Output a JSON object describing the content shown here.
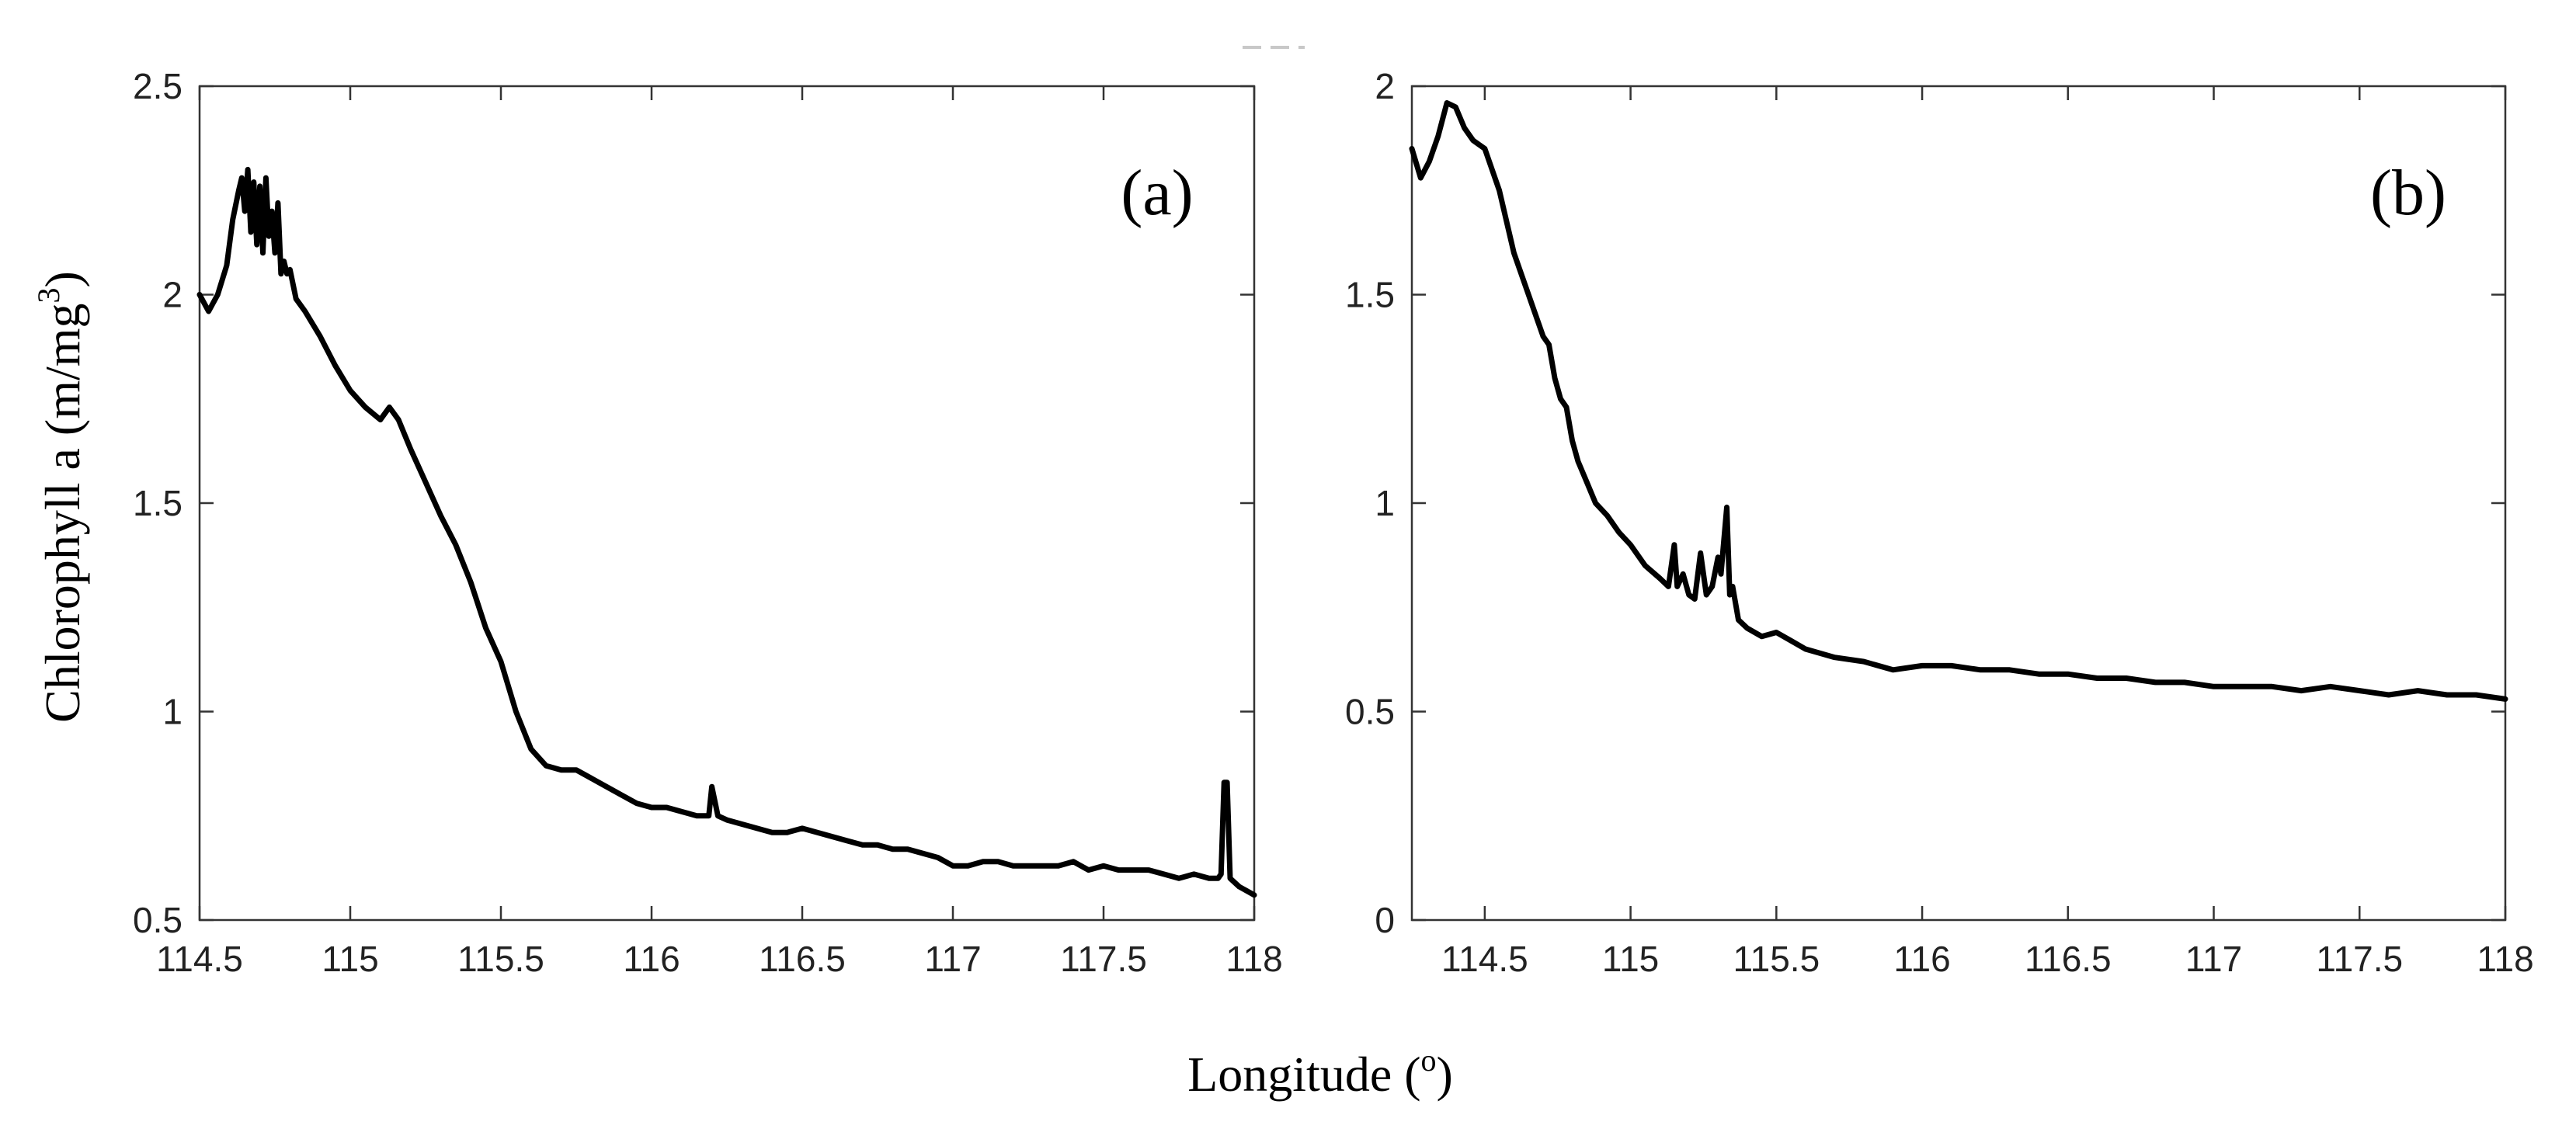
{
  "figure": {
    "shared_xlabel": "Longitude (",
    "shared_xlabel_sup": "o",
    "shared_xlabel_end": ")",
    "shared_ylabel": "Chlorophyll a (m/mg",
    "shared_ylabel_sup": "3",
    "shared_ylabel_end": ")"
  },
  "chart_data": [
    {
      "type": "line",
      "panel_label": "(a)",
      "xlim": [
        114.5,
        118
      ],
      "ylim": [
        0.5,
        2.5
      ],
      "xticks": [
        114.5,
        115,
        115.5,
        116,
        116.5,
        117,
        117.5,
        118
      ],
      "xtick_labels": [
        "114.5",
        "115",
        "115.5",
        "116",
        "116.5",
        "117",
        "117.5",
        "118"
      ],
      "yticks": [
        0.5,
        1,
        1.5,
        2,
        2.5
      ],
      "ytick_labels": [
        "0.5",
        "1",
        "1.5",
        "2",
        "2.5"
      ],
      "grid": false,
      "line_color": "#000000",
      "series": [
        {
          "x": [
            114.5,
            114.53,
            114.56,
            114.59,
            114.61,
            114.63,
            114.64,
            114.65,
            114.66,
            114.67,
            114.68,
            114.69,
            114.7,
            114.71,
            114.72,
            114.73,
            114.74,
            114.75,
            114.76,
            114.77,
            114.78,
            114.79,
            114.8,
            114.82,
            114.85,
            114.9,
            114.95,
            115.0,
            115.05,
            115.1,
            115.13,
            115.16,
            115.2,
            115.25,
            115.3,
            115.35,
            115.4,
            115.45,
            115.5,
            115.55,
            115.6,
            115.65,
            115.7,
            115.75,
            115.8,
            115.85,
            115.9,
            115.95,
            116.0,
            116.05,
            116.1,
            116.15,
            116.19,
            116.2,
            116.22,
            116.25,
            116.3,
            116.35,
            116.4,
            116.45,
            116.5,
            116.55,
            116.6,
            116.65,
            116.7,
            116.75,
            116.8,
            116.85,
            116.9,
            116.95,
            117.0,
            117.05,
            117.1,
            117.15,
            117.2,
            117.25,
            117.3,
            117.35,
            117.4,
            117.45,
            117.5,
            117.55,
            117.6,
            117.65,
            117.7,
            117.75,
            117.8,
            117.85,
            117.88,
            117.89,
            117.9,
            117.91,
            117.92,
            117.95,
            118.0
          ],
          "y": [
            2.0,
            1.96,
            2.0,
            2.07,
            2.18,
            2.25,
            2.28,
            2.2,
            2.3,
            2.15,
            2.27,
            2.12,
            2.26,
            2.1,
            2.28,
            2.14,
            2.2,
            2.1,
            2.22,
            2.05,
            2.08,
            2.05,
            2.06,
            1.99,
            1.96,
            1.9,
            1.83,
            1.77,
            1.73,
            1.7,
            1.73,
            1.7,
            1.63,
            1.55,
            1.47,
            1.4,
            1.31,
            1.2,
            1.12,
            1.0,
            0.91,
            0.87,
            0.86,
            0.86,
            0.84,
            0.82,
            0.8,
            0.78,
            0.77,
            0.77,
            0.76,
            0.75,
            0.75,
            0.82,
            0.75,
            0.74,
            0.73,
            0.72,
            0.71,
            0.71,
            0.72,
            0.71,
            0.7,
            0.69,
            0.68,
            0.68,
            0.67,
            0.67,
            0.66,
            0.65,
            0.63,
            0.63,
            0.64,
            0.64,
            0.63,
            0.63,
            0.63,
            0.63,
            0.64,
            0.62,
            0.63,
            0.62,
            0.62,
            0.62,
            0.61,
            0.6,
            0.61,
            0.6,
            0.6,
            0.61,
            0.83,
            0.83,
            0.6,
            0.58,
            0.56
          ]
        }
      ]
    },
    {
      "type": "line",
      "panel_label": "(b)",
      "xlim": [
        114.25,
        118
      ],
      "ylim": [
        0,
        2
      ],
      "xticks": [
        114.5,
        115,
        115.5,
        116,
        116.5,
        117,
        117.5,
        118
      ],
      "xtick_labels": [
        "114.5",
        "115",
        "115.5",
        "116",
        "116.5",
        "117",
        "117.5",
        "118"
      ],
      "yticks": [
        0,
        0.5,
        1,
        1.5,
        2
      ],
      "ytick_labels": [
        "0",
        "0.5",
        "1",
        "1.5",
        "2"
      ],
      "grid": false,
      "line_color": "#000000",
      "series": [
        {
          "x": [
            114.25,
            114.28,
            114.31,
            114.34,
            114.37,
            114.4,
            114.43,
            114.46,
            114.5,
            114.55,
            114.6,
            114.65,
            114.7,
            114.72,
            114.74,
            114.76,
            114.78,
            114.8,
            114.82,
            114.85,
            114.88,
            114.92,
            114.96,
            115.0,
            115.05,
            115.1,
            115.13,
            115.15,
            115.16,
            115.18,
            115.2,
            115.22,
            115.24,
            115.26,
            115.28,
            115.3,
            115.31,
            115.33,
            115.34,
            115.35,
            115.37,
            115.4,
            115.45,
            115.5,
            115.55,
            115.6,
            115.7,
            115.8,
            115.9,
            116.0,
            116.1,
            116.2,
            116.3,
            116.4,
            116.5,
            116.6,
            116.7,
            116.8,
            116.9,
            117.0,
            117.1,
            117.2,
            117.3,
            117.4,
            117.5,
            117.6,
            117.7,
            117.8,
            117.9,
            118.0
          ],
          "y": [
            1.85,
            1.78,
            1.82,
            1.88,
            1.96,
            1.95,
            1.9,
            1.87,
            1.85,
            1.75,
            1.6,
            1.5,
            1.4,
            1.38,
            1.3,
            1.25,
            1.23,
            1.15,
            1.1,
            1.05,
            1.0,
            0.97,
            0.93,
            0.9,
            0.85,
            0.82,
            0.8,
            0.9,
            0.8,
            0.83,
            0.78,
            0.77,
            0.88,
            0.78,
            0.8,
            0.87,
            0.83,
            0.99,
            0.78,
            0.8,
            0.72,
            0.7,
            0.68,
            0.69,
            0.67,
            0.65,
            0.63,
            0.62,
            0.6,
            0.61,
            0.61,
            0.6,
            0.6,
            0.59,
            0.59,
            0.58,
            0.58,
            0.57,
            0.57,
            0.56,
            0.56,
            0.56,
            0.55,
            0.56,
            0.55,
            0.54,
            0.55,
            0.54,
            0.54,
            0.53
          ]
        }
      ]
    }
  ]
}
